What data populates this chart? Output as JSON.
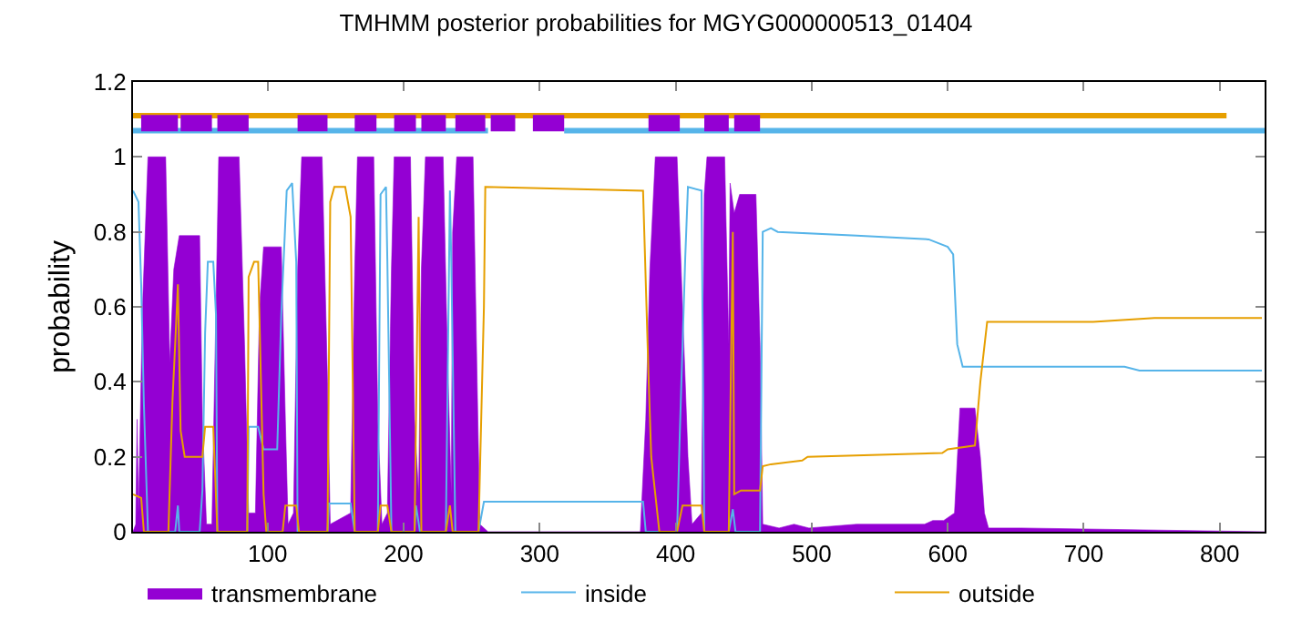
{
  "chart_data": {
    "type": "line",
    "title": "TMHMM posterior probabilities for MGYG000000513_01404",
    "ylabel": "probability",
    "xlim": [
      1,
      833
    ],
    "xticks": [
      100,
      200,
      300,
      400,
      500,
      600,
      700,
      800
    ],
    "ylim": [
      0,
      1.2
    ],
    "yticks": [
      0,
      0.2,
      0.4,
      0.6,
      0.8,
      1,
      1.2
    ],
    "grid": false,
    "legend": "bottom",
    "marker": "none",
    "line_style": "solid",
    "series": [
      {
        "name": "transmembrane",
        "type": "area",
        "color": "#9400d3",
        "x": [
          1,
          3,
          4,
          5,
          8,
          12,
          25,
          28,
          31,
          35,
          50,
          52,
          55,
          59,
          62,
          64,
          79,
          83,
          86,
          91,
          94,
          97,
          110,
          113,
          115,
          119,
          122,
          125,
          140,
          144,
          146,
          161,
          164,
          166,
          178,
          181,
          184,
          188,
          191,
          193,
          205,
          208,
          211,
          213,
          216,
          229,
          232,
          235,
          236,
          239,
          251,
          254,
          256,
          262,
          374,
          378,
          381,
          385,
          401,
          405,
          409,
          412,
          419,
          421,
          423,
          436,
          439,
          440,
          443,
          447,
          459,
          462,
          464,
          476,
          487,
          498,
          533,
          583,
          589,
          597,
          605,
          609,
          620,
          624,
          627,
          630,
          654,
          833
        ],
        "values": [
          0,
          0.02,
          0.3,
          0.05,
          0.6,
          1,
          1,
          0.45,
          0.7,
          0.79,
          0.79,
          0.3,
          0.02,
          0.02,
          0.6,
          1,
          1,
          0.5,
          0.05,
          0.05,
          0.6,
          0.76,
          0.76,
          0.3,
          0.02,
          0.05,
          0.7,
          1,
          1,
          0.4,
          0.02,
          0.05,
          0.7,
          1,
          1,
          0.3,
          0.02,
          0.05,
          0.7,
          1,
          1,
          0.3,
          0.1,
          0.7,
          1,
          1,
          0.5,
          0.1,
          0.8,
          1,
          1,
          0.4,
          0.02,
          0,
          0,
          0.3,
          0.7,
          1,
          1,
          0.6,
          0.2,
          0.02,
          0.05,
          0.9,
          1,
          1,
          0.5,
          0.93,
          0.85,
          0.9,
          0.9,
          0.5,
          0.02,
          0.01,
          0.02,
          0.01,
          0.02,
          0.02,
          0.03,
          0.03,
          0.05,
          0.33,
          0.33,
          0.2,
          0.05,
          0.01,
          0.01,
          0
        ]
      },
      {
        "name": "inside",
        "color": "#56b4e9",
        "x": [
          1,
          5,
          7,
          9,
          12,
          32,
          34,
          35,
          50,
          52,
          54,
          56,
          60,
          62,
          63,
          85,
          86,
          93,
          97,
          107,
          110,
          114,
          118,
          121,
          122,
          144,
          145,
          161,
          164,
          181,
          183,
          187,
          188,
          191,
          208,
          209,
          212,
          231,
          234,
          235,
          238,
          255,
          259,
          376,
          378,
          401,
          403,
          407,
          409,
          419,
          421,
          439,
          442,
          444,
          462,
          464,
          470,
          475,
          533,
          586,
          600,
          604,
          607,
          611,
          730,
          741,
          831
        ],
        "values": [
          0.91,
          0.88,
          0.66,
          0.34,
          0,
          0,
          0.07,
          0,
          0,
          0.11,
          0.53,
          0.72,
          0.72,
          0.58,
          0,
          0,
          0.28,
          0.28,
          0.22,
          0.22,
          0.58,
          0.91,
          0.93,
          0.72,
          0,
          0,
          0.075,
          0.075,
          0,
          0,
          0.9,
          0.92,
          0.72,
          0,
          0,
          0.07,
          0,
          0,
          0.91,
          0.72,
          0,
          0,
          0.08,
          0.08,
          0,
          0,
          0.26,
          0.73,
          0.92,
          0.91,
          0,
          0,
          0.06,
          0,
          0,
          0.8,
          0.81,
          0.8,
          0.79,
          0.78,
          0.76,
          0.74,
          0.5,
          0.44,
          0.44,
          0.43,
          0.43
        ]
      },
      {
        "name": "outside",
        "color": "#e69f00",
        "x": [
          1,
          7,
          9,
          27,
          30,
          32,
          34,
          36,
          39,
          52,
          54,
          60,
          63,
          85,
          86,
          90,
          93,
          97,
          99,
          111,
          113,
          121,
          123,
          144,
          146,
          149,
          157,
          161,
          164,
          181,
          183,
          188,
          191,
          208,
          211,
          213,
          231,
          234,
          236,
          255,
          259,
          260,
          376,
          380,
          382,
          388,
          401,
          405,
          419,
          421,
          439,
          442,
          443,
          448,
          462,
          464,
          470,
          493,
          497,
          596,
          600,
          620,
          624,
          629,
          707,
          752,
          831
        ],
        "values": [
          0.1,
          0.09,
          0,
          0,
          0.35,
          0.5,
          0.66,
          0.27,
          0.2,
          0.2,
          0.28,
          0.28,
          0,
          0,
          0.68,
          0.72,
          0.72,
          0.1,
          0,
          0,
          0.07,
          0.07,
          0,
          0,
          0.88,
          0.92,
          0.92,
          0.84,
          0,
          0,
          0.07,
          0.07,
          0,
          0,
          0.84,
          0,
          0,
          0.07,
          0,
          0,
          0.6,
          0.92,
          0.91,
          0.42,
          0.2,
          0,
          0,
          0.07,
          0.07,
          0,
          0,
          0.8,
          0.1,
          0.11,
          0.11,
          0.175,
          0.18,
          0.19,
          0.2,
          0.21,
          0.22,
          0.23,
          0.4,
          0.56,
          0.56,
          0.57,
          0.57
        ]
      },
      {
        "color": "#e69f00",
        "x": [
          1,
          805
        ],
        "values": [
          1.11,
          1.11
        ]
      },
      {
        "color": "#56b4e9",
        "x": [
          1,
          262,
          263,
          318,
          833
        ],
        "values": [
          1.07,
          1.07,
          null,
          1.07,
          1.07
        ]
      },
      {
        "color": "#9400d3",
        "x": [
          7,
          34,
          35,
          36,
          59,
          60,
          63,
          86,
          87,
          122,
          144,
          145,
          164,
          180,
          181,
          193,
          209,
          210,
          213,
          231,
          232,
          238,
          260,
          261,
          264,
          282,
          283,
          295,
          318,
          319,
          380,
          403,
          404,
          421,
          439,
          440,
          443,
          462
        ],
        "values": [
          1.09,
          1.09,
          null,
          1.09,
          1.09,
          null,
          1.09,
          1.09,
          null,
          1.09,
          1.09,
          null,
          1.09,
          1.09,
          null,
          1.09,
          1.09,
          null,
          1.09,
          1.09,
          null,
          1.09,
          1.09,
          null,
          1.09,
          1.09,
          null,
          1.09,
          1.09,
          null,
          1.09,
          1.09,
          null,
          1.09,
          1.09,
          null,
          1.09,
          1.09
        ]
      }
    ]
  }
}
